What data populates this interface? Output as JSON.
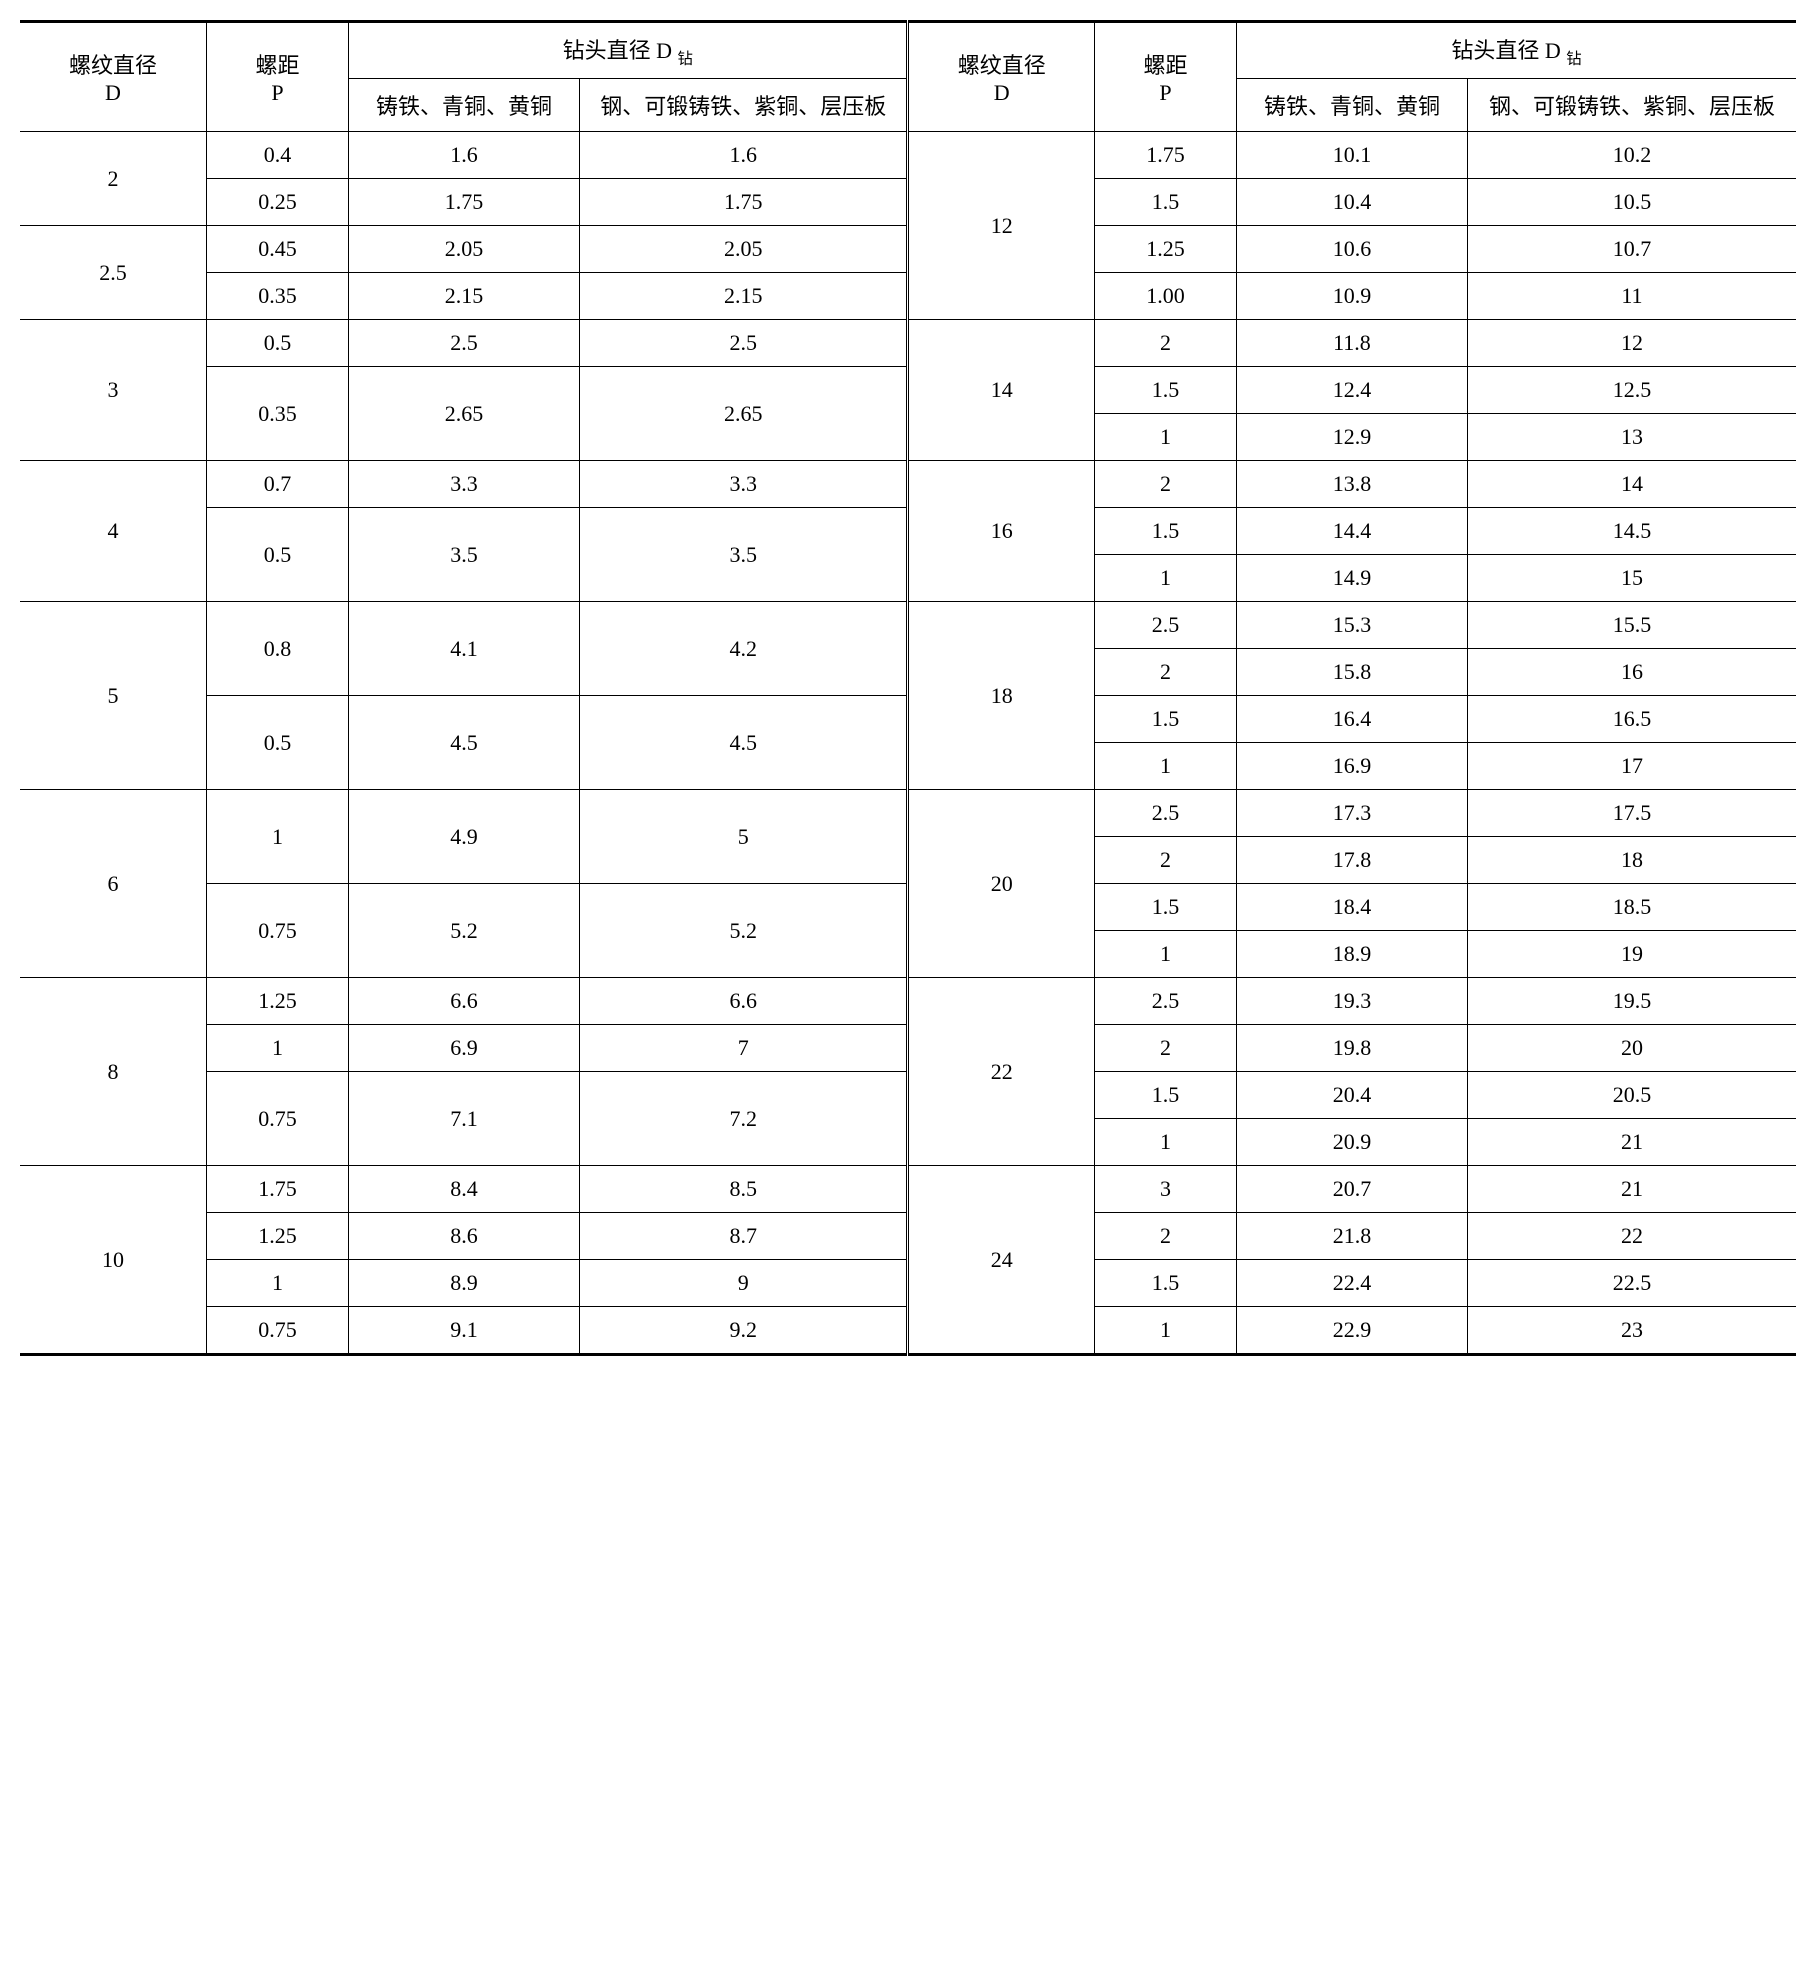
{
  "table": {
    "type": "table",
    "background_color": "#ffffff",
    "border_color": "#000000",
    "text_color": "#000000",
    "font_family": "SimSun",
    "cell_fontsize": 22,
    "headers": {
      "thread_diameter": "螺纹直径",
      "thread_diameter_sym": "D",
      "pitch": "螺距",
      "pitch_sym": "P",
      "drill_diameter": "钻头直径 D",
      "drill_sub": "钻",
      "material_a": "铸铁、青铜、黄铜",
      "material_b": "钢、可锻铸铁、紫铜、层压板"
    },
    "left_groups": [
      {
        "diameter": "2",
        "rows": [
          {
            "p": "0.4",
            "a": "1.6",
            "b": "1.6"
          },
          {
            "p": "0.25",
            "a": "1.75",
            "b": "1.75"
          }
        ]
      },
      {
        "diameter": "2.5",
        "rows": [
          {
            "p": "0.45",
            "a": "2.05",
            "b": "2.05"
          },
          {
            "p": "0.35",
            "a": "2.15",
            "b": "2.15"
          }
        ]
      },
      {
        "diameter": "3",
        "rows": [
          {
            "p": "0.5",
            "a": "2.5",
            "b": "2.5",
            "span": 1
          },
          {
            "p": "0.35",
            "a": "2.65",
            "b": "2.65",
            "span": 2
          }
        ]
      },
      {
        "diameter": "4",
        "rows": [
          {
            "p": "0.7",
            "a": "3.3",
            "b": "3.3",
            "span": 1
          },
          {
            "p": "0.5",
            "a": "3.5",
            "b": "3.5",
            "span": 2
          }
        ]
      },
      {
        "diameter": "5",
        "rows": [
          {
            "p": "0.8",
            "a": "4.1",
            "b": "4.2",
            "span": 2
          },
          {
            "p": "0.5",
            "a": "4.5",
            "b": "4.5",
            "span": 2
          }
        ]
      },
      {
        "diameter": "6",
        "rows": [
          {
            "p": "1",
            "a": "4.9",
            "b": "5",
            "span": 2
          },
          {
            "p": "0.75",
            "a": "5.2",
            "b": "5.2",
            "span": 2
          }
        ]
      },
      {
        "diameter": "8",
        "rows": [
          {
            "p": "1.25",
            "a": "6.6",
            "b": "6.6",
            "span": 1
          },
          {
            "p": "1",
            "a": "6.9",
            "b": "7",
            "span": 1
          },
          {
            "p": "0.75",
            "a": "7.1",
            "b": "7.2",
            "span": 2
          }
        ]
      },
      {
        "diameter": "10",
        "rows": [
          {
            "p": "1.75",
            "a": "8.4",
            "b": "8.5"
          },
          {
            "p": "1.25",
            "a": "8.6",
            "b": "8.7"
          },
          {
            "p": "1",
            "a": "8.9",
            "b": "9"
          },
          {
            "p": "0.75",
            "a": "9.1",
            "b": "9.2"
          }
        ]
      }
    ],
    "right_groups": [
      {
        "diameter": "12",
        "rows": [
          {
            "p": "1.75",
            "a": "10.1",
            "b": "10.2"
          },
          {
            "p": "1.5",
            "a": "10.4",
            "b": "10.5"
          },
          {
            "p": "1.25",
            "a": "10.6",
            "b": "10.7"
          },
          {
            "p": "1.00",
            "a": "10.9",
            "b": "11"
          }
        ]
      },
      {
        "diameter": "14",
        "rows": [
          {
            "p": "2",
            "a": "11.8",
            "b": "12"
          },
          {
            "p": "1.5",
            "a": "12.4",
            "b": "12.5"
          },
          {
            "p": "1",
            "a": "12.9",
            "b": "13"
          }
        ]
      },
      {
        "diameter": "16",
        "rows": [
          {
            "p": "2",
            "a": "13.8",
            "b": "14"
          },
          {
            "p": "1.5",
            "a": "14.4",
            "b": "14.5"
          },
          {
            "p": "1",
            "a": "14.9",
            "b": "15"
          }
        ]
      },
      {
        "diameter": "18",
        "rows": [
          {
            "p": "2.5",
            "a": "15.3",
            "b": "15.5"
          },
          {
            "p": "2",
            "a": "15.8",
            "b": "16"
          },
          {
            "p": "1.5",
            "a": "16.4",
            "b": "16.5"
          },
          {
            "p": "1",
            "a": "16.9",
            "b": "17"
          }
        ]
      },
      {
        "diameter": "20",
        "rows": [
          {
            "p": "2.5",
            "a": "17.3",
            "b": "17.5"
          },
          {
            "p": "2",
            "a": "17.8",
            "b": "18"
          },
          {
            "p": "1.5",
            "a": "18.4",
            "b": "18.5"
          },
          {
            "p": "1",
            "a": "18.9",
            "b": "19"
          }
        ]
      },
      {
        "diameter": "22",
        "rows": [
          {
            "p": "2.5",
            "a": "19.3",
            "b": "19.5"
          },
          {
            "p": "2",
            "a": "19.8",
            "b": "20"
          },
          {
            "p": "1.5",
            "a": "20.4",
            "b": "20.5"
          },
          {
            "p": "1",
            "a": "20.9",
            "b": "21"
          }
        ]
      },
      {
        "diameter": "24",
        "rows": [
          {
            "p": "3",
            "a": "20.7",
            "b": "21"
          },
          {
            "p": "2",
            "a": "21.8",
            "b": "22"
          },
          {
            "p": "1.5",
            "a": "22.4",
            "b": "22.5"
          },
          {
            "p": "1",
            "a": "22.9",
            "b": "23"
          }
        ]
      }
    ],
    "col_widths_pct": [
      8,
      6,
      10,
      14,
      8,
      6,
      10,
      14
    ]
  }
}
